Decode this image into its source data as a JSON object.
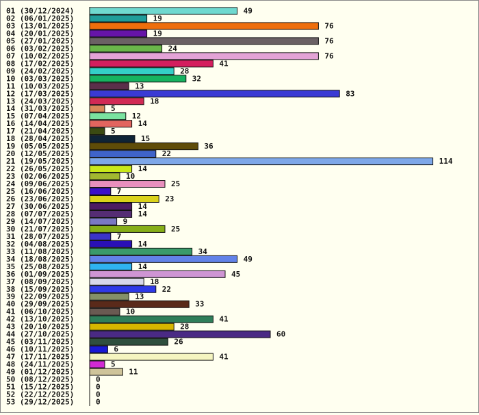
{
  "chart_data": {
    "type": "bar",
    "orientation": "horizontal",
    "grid": false,
    "legend": "none",
    "xlim": [
      0,
      114
    ],
    "categories": [
      "01 (30/12/2024)",
      "02 (06/01/2025)",
      "03 (13/01/2025)",
      "04 (20/01/2025)",
      "05 (27/01/2025)",
      "06 (03/02/2025)",
      "07 (10/02/2025)",
      "08 (17/02/2025)",
      "09 (24/02/2025)",
      "10 (03/03/2025)",
      "11 (10/03/2025)",
      "12 (17/03/2025)",
      "13 (24/03/2025)",
      "14 (31/03/2025)",
      "15 (07/04/2025)",
      "16 (14/04/2025)",
      "17 (21/04/2025)",
      "18 (28/04/2025)",
      "19 (05/05/2025)",
      "20 (12/05/2025)",
      "21 (19/05/2025)",
      "22 (26/05/2025)",
      "23 (02/06/2025)",
      "24 (09/06/2025)",
      "25 (16/06/2025)",
      "26 (23/06/2025)",
      "27 (30/06/2025)",
      "28 (07/07/2025)",
      "29 (14/07/2025)",
      "30 (21/07/2025)",
      "31 (28/07/2025)",
      "32 (04/08/2025)",
      "33 (11/08/2025)",
      "34 (18/08/2025)",
      "35 (25/08/2025)",
      "36 (01/09/2025)",
      "37 (08/09/2025)",
      "38 (15/09/2025)",
      "39 (22/09/2025)",
      "40 (29/09/2025)",
      "41 (06/10/2025)",
      "42 (13/10/2025)",
      "43 (20/10/2025)",
      "44 (27/10/2025)",
      "45 (03/11/2025)",
      "46 (10/11/2025)",
      "47 (17/11/2025)",
      "48 (24/11/2025)",
      "49 (01/12/2025)",
      "50 (08/12/2025)",
      "51 (15/12/2025)",
      "52 (22/12/2025)",
      "53 (29/12/2025)"
    ],
    "values": [
      49,
      19,
      76,
      19,
      76,
      24,
      76,
      41,
      28,
      32,
      13,
      83,
      18,
      5,
      12,
      14,
      5,
      15,
      36,
      22,
      114,
      14,
      10,
      25,
      7,
      23,
      14,
      14,
      9,
      25,
      7,
      14,
      34,
      49,
      14,
      45,
      18,
      22,
      13,
      33,
      10,
      41,
      28,
      60,
      26,
      6,
      41,
      5,
      11,
      0,
      0,
      0,
      0
    ],
    "colors": [
      "#6fd9cf",
      "#1f9d9a",
      "#ee6e0c",
      "#6614a8",
      "#6b6164",
      "#6ab64a",
      "#e3a3d6",
      "#d41e5e",
      "#34cfc7",
      "#16b360",
      "#5b2f4a",
      "#3a3ad4",
      "#d12a55",
      "#d98a5a",
      "#7ae3a0",
      "#e2655f",
      "#3b4a12",
      "#0f2436",
      "#5f4c08",
      "#3f63c9",
      "#7ea7e8",
      "#c9e81a",
      "#a2b830",
      "#e88fbd",
      "#3a10c8",
      "#dad21a",
      "#4c1a62",
      "#552d74",
      "#7a78c3",
      "#86ae18",
      "#3b34c8",
      "#2a10b6",
      "#3a9a6a",
      "#6282e8",
      "#2fb3f0",
      "#cf95d4",
      "#d8d8ea",
      "#2f3ae8",
      "#849068",
      "#5a2a1a",
      "#6a5a52",
      "#2f7e5a",
      "#d6b600",
      "#4a2a84",
      "#2f4f3e",
      "#1a1ad4",
      "#f5f5c0",
      "#d22ad4",
      "#cfc49a",
      "#888888",
      "#888888",
      "#888888",
      "#888888"
    ]
  }
}
